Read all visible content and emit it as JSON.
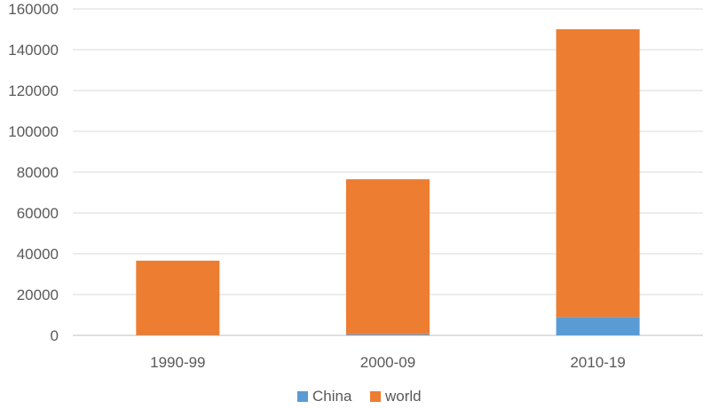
{
  "chart_data": {
    "type": "bar",
    "stacked": true,
    "categories": [
      "1990-99",
      "2000-09",
      "2010-19"
    ],
    "series": [
      {
        "name": "China",
        "values": [
          100,
          500,
          9000
        ],
        "color": "#5B9BD5"
      },
      {
        "name": "world",
        "values": [
          36500,
          76000,
          141000
        ],
        "color": "#ED7D31"
      }
    ],
    "ylim": [
      0,
      160000
    ],
    "y_ticks": [
      "0",
      "20000",
      "40000",
      "60000",
      "80000",
      "100000",
      "120000",
      "140000",
      "160000"
    ],
    "grid": true,
    "legend_position": "bottom"
  }
}
